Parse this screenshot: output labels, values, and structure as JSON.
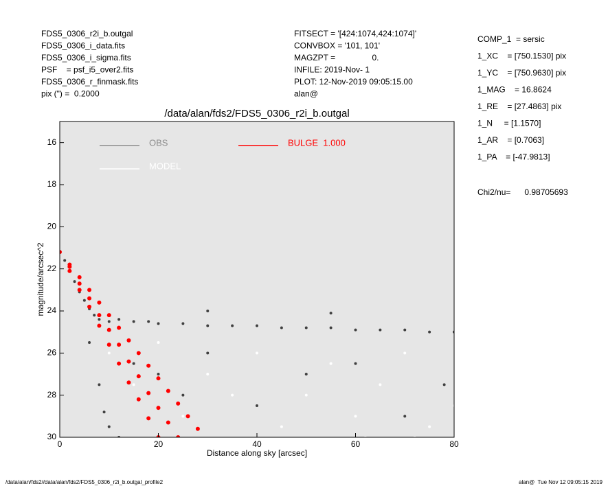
{
  "header": {
    "left": [
      "FDS5_0306_r2i_b.outgal",
      "FDS5_0306_i_data.fits",
      "FDS5_0306_i_sigma.fits",
      "PSF    = psf_i5_over2.fits",
      "FDS5_0306_r_finmask.fits",
      "pix (\") =  0.2000"
    ],
    "middle": [
      "FITSECT = '[424:1074,424:1074]'",
      "CONVBOX = '101, 101'",
      "MAGZPT =                0.",
      "INFILE: 2019-Nov- 1",
      "PLOT: 12-Nov-2019 09:05:15.00",
      "alan@"
    ],
    "right": [
      "COMP_1  = sersic",
      "1_XC    = [750.1530] pix",
      "1_YC    = [750.9630] pix",
      "1_MAG    = 16.8624",
      "1_RE    = [27.4863] pix",
      "1_N     = [1.1570]",
      "1_AR    = [0.7063]",
      "1_PA    = [-47.9813]"
    ],
    "chi2": "Chi2/nu=      0.98705693"
  },
  "chart_data": {
    "type": "scatter",
    "title": "/data/alan/fds2/FDS5_0306_r2i_b.outgal",
    "x_label": "Distance along sky [arcsec]",
    "y_label": "magnitude/arcsec^2",
    "xlim": [
      0,
      80
    ],
    "ylim": [
      30,
      15
    ],
    "xticks": [
      0,
      20,
      40,
      60,
      80
    ],
    "yticks": [
      16,
      18,
      20,
      22,
      24,
      26,
      28,
      30
    ],
    "background": "#e6e6e6",
    "series": [
      {
        "name": "OBS",
        "color": "#404040",
        "legend_color": "#8c8c8c",
        "x": [
          0,
          1,
          2,
          3,
          4,
          5,
          6,
          7,
          8,
          10,
          12,
          15,
          18,
          20,
          25,
          30,
          35,
          40,
          45,
          50,
          55,
          60,
          65,
          70,
          75,
          80,
          6,
          8,
          9,
          10,
          12,
          15,
          20,
          25,
          30,
          40,
          50,
          60,
          70,
          78,
          30,
          55
        ],
        "values": [
          21.2,
          21.6,
          22.1,
          22.6,
          23.1,
          23.5,
          23.9,
          24.2,
          24.4,
          24.5,
          24.4,
          24.5,
          24.5,
          24.6,
          24.6,
          24.7,
          24.7,
          24.7,
          24.8,
          24.8,
          24.8,
          24.9,
          24.9,
          24.9,
          25.0,
          25.0,
          25.5,
          27.5,
          28.8,
          29.5,
          30.0,
          26.5,
          27.0,
          28.0,
          26.0,
          28.5,
          27.0,
          26.5,
          29.0,
          27.5,
          24.0,
          24.1
        ]
      },
      {
        "name": "MODEL",
        "color": "#ffffff",
        "legend_color": "#ffffff",
        "x": [
          10,
          15,
          20,
          25,
          30,
          35,
          40,
          45,
          50,
          55,
          60,
          65,
          70,
          75,
          80,
          62,
          72
        ],
        "values": [
          26,
          27.5,
          25.5,
          29,
          27,
          28,
          26,
          29.5,
          28,
          26.5,
          29,
          27.5,
          26,
          29.5,
          28.5,
          30,
          30
        ]
      },
      {
        "name": "BULGE  1.000",
        "color": "#ff0000",
        "legend_color": "#ff0000",
        "x": [
          0,
          2,
          2,
          2,
          4,
          4,
          4,
          6,
          6,
          6,
          8,
          8,
          8,
          10,
          10,
          10,
          12,
          12,
          12,
          14,
          14,
          14,
          16,
          16,
          16,
          18,
          18,
          18,
          20,
          20,
          20,
          22,
          22,
          24,
          24,
          26,
          28
        ],
        "values": [
          21.2,
          21.8,
          21.9,
          22.1,
          22.4,
          22.7,
          23.0,
          23.0,
          23.4,
          23.8,
          23.6,
          24.2,
          24.7,
          24.2,
          24.9,
          25.6,
          24.8,
          25.6,
          26.5,
          25.4,
          26.4,
          27.4,
          26.0,
          27.1,
          28.2,
          26.6,
          27.9,
          29.1,
          27.2,
          28.6,
          30.0,
          27.8,
          29.3,
          28.4,
          30.0,
          29.0,
          29.6
        ]
      }
    ]
  },
  "footer": {
    "left": "/data/alan/fds2//data/alan/fds2/FDS5_0306_r2i_b.outgal_profile2",
    "right": "alan@  Tue Nov 12 09:05:15 2019"
  }
}
